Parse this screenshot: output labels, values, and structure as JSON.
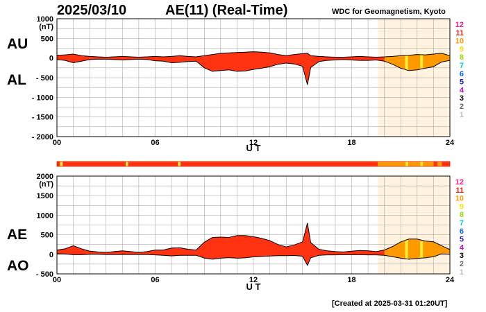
{
  "header": {
    "date": "2025/03/10",
    "title": "AE(11) (Real-Time)",
    "source": "WDC for Geomagnetism, Kyoto"
  },
  "footer": {
    "created": "[Created at 2025-03-31 01:20UT]"
  },
  "labels": {
    "au": "AU",
    "al": "AL",
    "ae": "AE",
    "ao": "AO"
  },
  "colors": {
    "fill_main": "#ff3311",
    "fill_orange": "#ff9900",
    "fill_yellow": "#ffee33",
    "outline": "#000000",
    "grid": "#999999"
  },
  "kp_scale": [
    {
      "label": "12",
      "color": "#ff1a80"
    },
    {
      "label": "11",
      "color": "#ee2211"
    },
    {
      "label": "10",
      "color": "#ff9900"
    },
    {
      "label": "9",
      "color": "#ffdd00"
    },
    {
      "label": "8",
      "color": "#99dd00"
    },
    {
      "label": "7",
      "color": "#00cccc"
    },
    {
      "label": "6",
      "color": "#0066ff"
    },
    {
      "label": "5",
      "color": "#1a1acc"
    },
    {
      "label": "4",
      "color": "#cc00cc"
    },
    {
      "label": "3",
      "color": "#000000"
    },
    {
      "label": "2",
      "color": "#666666"
    },
    {
      "label": "1",
      "color": "#bbbbbb"
    }
  ],
  "chart_data": [
    {
      "type": "area",
      "panel": "AU/AL",
      "ylabel": "(nT)",
      "xlabel": "U T",
      "xlim": [
        0,
        24
      ],
      "ylim": [
        -2000,
        1000
      ],
      "x_ticks": [
        "00",
        "06",
        "12",
        "18",
        "24"
      ],
      "y_ticks": [
        "1000",
        "500",
        "0",
        "- 500",
        "- 1000",
        "- 1500",
        "- 2000"
      ],
      "grid": true,
      "hours": [
        0,
        0.5,
        1,
        1.5,
        2,
        2.5,
        3,
        3.5,
        4,
        4.5,
        5,
        5.5,
        6,
        6.5,
        7,
        7.5,
        8,
        8.5,
        9,
        9.5,
        10,
        10.5,
        11,
        11.5,
        12,
        12.5,
        13,
        13.5,
        14,
        14.5,
        15,
        15.3,
        15.5,
        16,
        16.5,
        17,
        17.5,
        18,
        18.5,
        19,
        19.5,
        20,
        20.5,
        21,
        21.5,
        22,
        22.5,
        23,
        23.5,
        24
      ],
      "series": [
        {
          "name": "AU",
          "values": [
            70,
            80,
            100,
            60,
            40,
            30,
            20,
            30,
            40,
            30,
            20,
            30,
            40,
            30,
            40,
            60,
            40,
            30,
            60,
            90,
            120,
            130,
            140,
            150,
            160,
            150,
            130,
            90,
            60,
            90,
            110,
            120,
            60,
            40,
            30,
            20,
            20,
            30,
            40,
            30,
            20,
            30,
            40,
            60,
            70,
            90,
            80,
            100,
            120,
            60
          ]
        },
        {
          "name": "AL",
          "values": [
            -40,
            -60,
            -120,
            -80,
            -40,
            -30,
            -30,
            -40,
            -50,
            -40,
            -30,
            -40,
            -70,
            -80,
            -120,
            -110,
            -90,
            -80,
            -250,
            -340,
            -320,
            -300,
            -340,
            -330,
            -290,
            -260,
            -220,
            -160,
            -130,
            -150,
            -210,
            -680,
            -240,
            -90,
            -60,
            -50,
            -40,
            -50,
            -60,
            -60,
            -50,
            -80,
            -160,
            -260,
            -320,
            -300,
            -260,
            -220,
            -100,
            -60
          ]
        }
      ]
    },
    {
      "type": "area",
      "panel": "AE/AO",
      "ylabel": "(nT)",
      "xlabel": "U T",
      "xlim": [
        0,
        24
      ],
      "ylim": [
        -500,
        2000
      ],
      "x_ticks": [
        "00",
        "06",
        "12",
        "18",
        "24"
      ],
      "y_ticks": [
        "2000",
        "1500",
        "1000",
        "500",
        "0",
        "- 500"
      ],
      "grid": true,
      "hours": [
        0,
        0.5,
        1,
        1.5,
        2,
        2.5,
        3,
        3.5,
        4,
        4.5,
        5,
        5.5,
        6,
        6.5,
        7,
        7.5,
        8,
        8.5,
        9,
        9.5,
        10,
        10.5,
        11,
        11.5,
        12,
        12.5,
        13,
        13.5,
        14,
        14.5,
        15,
        15.3,
        15.5,
        16,
        16.5,
        17,
        17.5,
        18,
        18.5,
        19,
        19.5,
        20,
        20.5,
        21,
        21.5,
        22,
        22.5,
        23,
        23.5,
        24
      ],
      "series": [
        {
          "name": "AE",
          "values": [
            110,
            140,
            220,
            140,
            80,
            60,
            50,
            70,
            90,
            70,
            50,
            70,
            110,
            110,
            160,
            170,
            130,
            110,
            310,
            430,
            440,
            430,
            480,
            480,
            450,
            410,
            350,
            250,
            190,
            240,
            320,
            800,
            300,
            130,
            90,
            70,
            60,
            80,
            100,
            90,
            70,
            110,
            200,
            320,
            390,
            390,
            340,
            320,
            220,
            120
          ]
        },
        {
          "name": "AO",
          "values": [
            15,
            10,
            -10,
            -10,
            0,
            0,
            -5,
            -5,
            -5,
            -5,
            -5,
            -5,
            -15,
            -25,
            -40,
            -25,
            -25,
            -25,
            -95,
            -125,
            -100,
            -85,
            -100,
            -90,
            -65,
            -55,
            -45,
            -35,
            -35,
            -30,
            -50,
            -280,
            -90,
            -25,
            -15,
            -15,
            -10,
            -10,
            -10,
            -15,
            -15,
            -25,
            -60,
            -100,
            -125,
            -105,
            -90,
            -60,
            10,
            0
          ]
        }
      ]
    }
  ],
  "activity_bar": {
    "segments": [
      {
        "start": 0,
        "end": 0.2,
        "level": "main"
      },
      {
        "start": 0.2,
        "end": 0.35,
        "level": "yellow"
      },
      {
        "start": 0.35,
        "end": 4.2,
        "level": "main"
      },
      {
        "start": 4.2,
        "end": 4.35,
        "level": "yellow"
      },
      {
        "start": 4.35,
        "end": 7.4,
        "level": "main"
      },
      {
        "start": 7.4,
        "end": 7.55,
        "level": "yellow"
      },
      {
        "start": 7.55,
        "end": 19.6,
        "level": "main"
      },
      {
        "start": 19.6,
        "end": 21.3,
        "level": "orange"
      },
      {
        "start": 21.3,
        "end": 21.45,
        "level": "yellow"
      },
      {
        "start": 21.45,
        "end": 22.2,
        "level": "orange"
      },
      {
        "start": 22.2,
        "end": 22.35,
        "level": "yellow"
      },
      {
        "start": 22.35,
        "end": 23.0,
        "level": "orange"
      },
      {
        "start": 23.0,
        "end": 23.25,
        "level": "main"
      },
      {
        "start": 23.25,
        "end": 23.5,
        "level": "orange"
      },
      {
        "start": 23.5,
        "end": 24,
        "level": "main"
      }
    ]
  },
  "orange_shading": [
    {
      "start": 19.6,
      "end": 24
    }
  ],
  "yellow_stripes": [
    21.35,
    22.27
  ]
}
